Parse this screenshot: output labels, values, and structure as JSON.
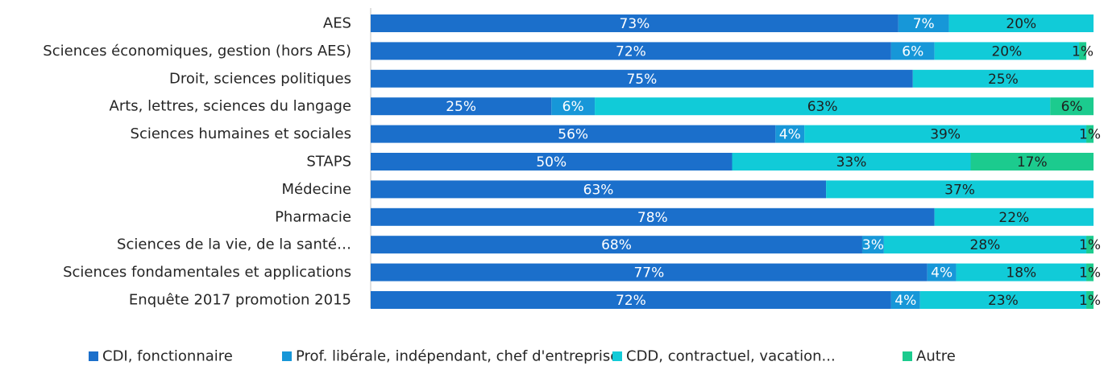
{
  "chart_data": {
    "type": "bar",
    "orientation": "horizontal",
    "stacked": true,
    "title": "",
    "xlabel": "",
    "ylabel": "",
    "xlim": [
      0,
      100
    ],
    "grid": false,
    "legend_position": "bottom",
    "categories": [
      "AES",
      "Sciences économiques, gestion (hors AES)",
      "Droit, sciences politiques",
      "Arts, lettres, sciences du langage",
      "Sciences humaines et sociales",
      "STAPS",
      "Médecine",
      "Pharmacie",
      "Sciences de la vie, de la santé…",
      "Sciences fondamentales et applications",
      "Enquête 2017 promotion 2015"
    ],
    "series": [
      {
        "name": "CDI, fonctionnaire",
        "color": "#1b6fcb",
        "label_color": "#ffffff",
        "values": [
          73,
          72,
          75,
          25,
          56,
          50,
          63,
          78,
          68,
          77,
          72
        ],
        "labels": [
          "73%",
          "72%",
          "75%",
          "25%",
          "56%",
          "50%",
          "63%",
          "78%",
          "68%",
          "77%",
          "72%"
        ]
      },
      {
        "name": "Prof. libérale, indépendant, chef d'entreprise",
        "color": "#1797d8",
        "label_color": "#ffffff",
        "values": [
          7,
          6,
          0,
          6,
          4,
          0,
          0,
          0,
          3,
          4,
          4
        ],
        "labels": [
          "7%",
          "6%",
          "",
          "6%",
          "4%",
          "",
          "",
          "",
          "3%",
          "4%",
          "4%"
        ]
      },
      {
        "name": "CDD, contractuel, vacation...",
        "color": "#11cbd8",
        "label_color": "#1f1f1f",
        "values": [
          20,
          20,
          25,
          63,
          39,
          33,
          37,
          22,
          28,
          18,
          23
        ],
        "labels": [
          "20%",
          "20%",
          "25%",
          "63%",
          "39%",
          "33%",
          "37%",
          "22%",
          "28%",
          "18%",
          "23%"
        ]
      },
      {
        "name": "Autre",
        "color": "#1ccb8e",
        "label_color": "#1f1f1f",
        "values": [
          0,
          1,
          0,
          6,
          1,
          17,
          0,
          0,
          1,
          1,
          1
        ],
        "labels": [
          "",
          "1%",
          "",
          "6%",
          "1%",
          "17%",
          "",
          "",
          "1%",
          "1%",
          "1%"
        ]
      }
    ]
  }
}
